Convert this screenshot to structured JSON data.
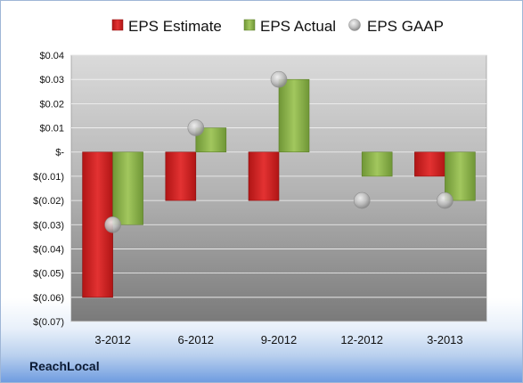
{
  "brand": "ReachLocal",
  "colors": {
    "estimate": "#cc1f1f",
    "actual": "#8db04a",
    "gaap": "#c7c7c7"
  },
  "chart_data": {
    "type": "bar",
    "categories": [
      "3-2012",
      "6-2012",
      "9-2012",
      "12-2012",
      "3-2013"
    ],
    "series": [
      {
        "name": "EPS Estimate",
        "values": [
          -0.06,
          -0.02,
          -0.02,
          null,
          -0.01
        ]
      },
      {
        "name": "EPS Actual",
        "values": [
          -0.03,
          0.01,
          0.03,
          -0.01,
          -0.02
        ]
      },
      {
        "name": "EPS GAAP",
        "type": "scatter",
        "values": [
          -0.03,
          0.01,
          0.03,
          -0.02,
          -0.02
        ]
      }
    ],
    "yticks": [
      "$0.04",
      "$0.03",
      "$0.02",
      "$0.01",
      "$-",
      "$(0.01)",
      "$(0.02)",
      "$(0.03)",
      "$(0.04)",
      "$(0.05)",
      "$(0.06)",
      "$(0.07)"
    ],
    "ylim": [
      -0.07,
      0.04
    ],
    "grid": true,
    "legend_position": "top"
  }
}
